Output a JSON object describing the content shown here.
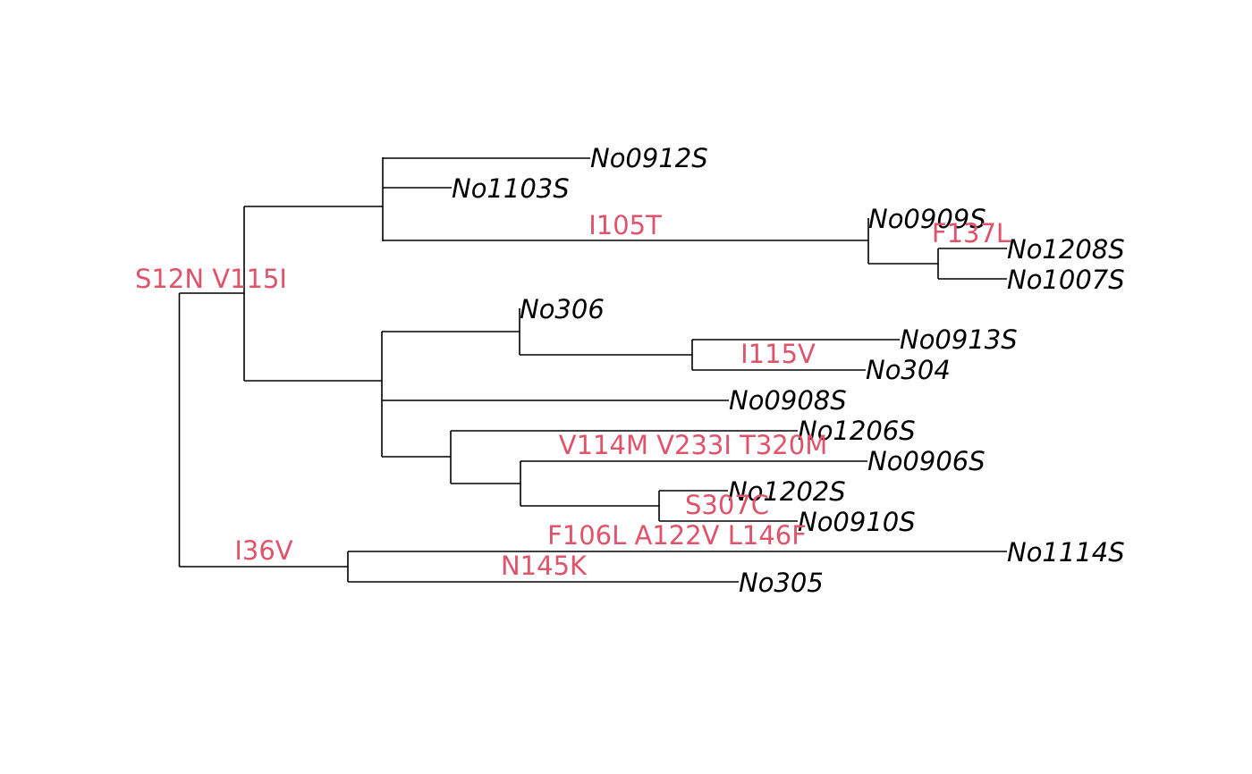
{
  "tree": {
    "mutation_color": "#DF536B",
    "tip_color": "#000000",
    "tips": {
      "t1": "No0912S",
      "t2": "No1103S",
      "t3": "No0909S",
      "t4": "No1208S",
      "t5": "No1007S",
      "t6": "No306",
      "t7": "No0913S",
      "t8": "No304",
      "t9": "No0908S",
      "t10": "No1206S",
      "t11": "No0906S",
      "t12": "No1202S",
      "t13": "No0910S",
      "t14": "No1114S",
      "t15": "No305"
    },
    "mutations": {
      "m1": "S12N V115I",
      "m2": "I105T",
      "m3": "F137L",
      "m4": "I115V",
      "m5": "V114M V233I T320M",
      "m6": "S307C",
      "m7": "F106L A122V L146F",
      "m8": "N145K",
      "m9": "I36V"
    }
  }
}
